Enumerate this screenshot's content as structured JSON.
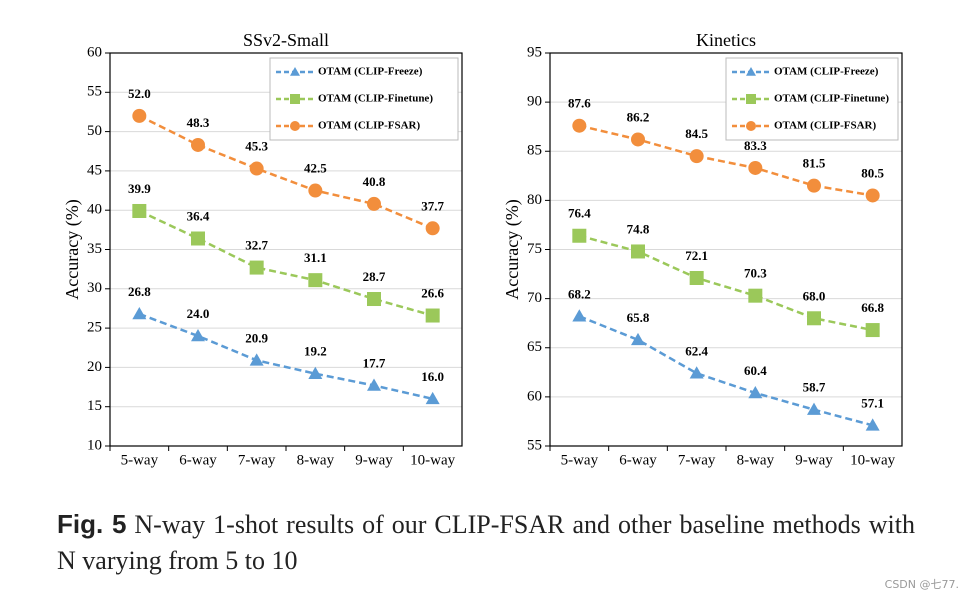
{
  "chart_data": [
    {
      "type": "line",
      "title": "SSv2-Small",
      "ylabel": "Accuracy (%)",
      "categories": [
        "5-way",
        "6-way",
        "7-way",
        "8-way",
        "9-way",
        "10-way"
      ],
      "ylim": [
        10,
        60
      ],
      "yticks": [
        10,
        15,
        20,
        25,
        30,
        35,
        40,
        45,
        50,
        55,
        60
      ],
      "grid": true,
      "legend": "upper right",
      "series": [
        {
          "name": "OTAM (CLIP-Freeze)",
          "color": "#5b9bd5",
          "marker": "triangle",
          "linestyle": "dashed",
          "values": [
            26.8,
            24.0,
            20.9,
            19.2,
            17.7,
            16.0
          ],
          "value_labels": [
            "26.8",
            "24.0",
            "20.9",
            "19.2",
            "17.7",
            "16.0"
          ]
        },
        {
          "name": "OTAM (CLIP-Finetune)",
          "color": "#9bc85a",
          "marker": "square",
          "linestyle": "dashed",
          "values": [
            39.9,
            36.4,
            32.7,
            31.1,
            28.7,
            26.6
          ],
          "value_labels": [
            "39.9",
            "36.4",
            "32.7",
            "31.1",
            "28.7",
            "26.6"
          ]
        },
        {
          "name": "OTAM (CLIP-FSAR)",
          "color": "#f28e3c",
          "marker": "circle",
          "linestyle": "dashed",
          "values": [
            52.0,
            48.3,
            45.3,
            42.5,
            40.8,
            37.7
          ],
          "value_labels": [
            "52.0",
            "48.3",
            "45.3",
            "42.5",
            "40.8",
            "37.7"
          ]
        }
      ]
    },
    {
      "type": "line",
      "title": "Kinetics",
      "ylabel": "Accuracy (%)",
      "categories": [
        "5-way",
        "6-way",
        "7-way",
        "8-way",
        "9-way",
        "10-way"
      ],
      "ylim": [
        55,
        95
      ],
      "yticks": [
        55,
        60,
        65,
        70,
        75,
        80,
        85,
        90,
        95
      ],
      "grid": true,
      "legend": "upper right",
      "series": [
        {
          "name": "OTAM (CLIP-Freeze)",
          "color": "#5b9bd5",
          "marker": "triangle",
          "linestyle": "dashed",
          "values": [
            68.2,
            65.8,
            62.4,
            60.4,
            58.7,
            57.1
          ],
          "value_labels": [
            "68.2",
            "65.8",
            "62.4",
            "60.4",
            "58.7",
            "57.1"
          ]
        },
        {
          "name": "OTAM (CLIP-Finetune)",
          "color": "#9bc85a",
          "marker": "square",
          "linestyle": "dashed",
          "values": [
            76.4,
            74.8,
            72.1,
            70.3,
            68.0,
            66.8
          ],
          "value_labels": [
            "76.4",
            "74.8",
            "72.1",
            "70.3",
            "68.0",
            "66.8"
          ]
        },
        {
          "name": "OTAM (CLIP-FSAR)",
          "color": "#f28e3c",
          "marker": "circle",
          "linestyle": "dashed",
          "values": [
            87.6,
            86.2,
            84.5,
            83.3,
            81.5,
            80.5
          ],
          "value_labels": [
            "87.6",
            "86.2",
            "84.5",
            "83.3",
            "81.5",
            "80.5"
          ]
        }
      ]
    }
  ],
  "caption": {
    "label": "Fig. 5",
    "text": "N-way 1-shot results of our CLIP-FSAR and other baseline methods with N varying from 5 to 10"
  },
  "watermark": "CSDN @七77."
}
